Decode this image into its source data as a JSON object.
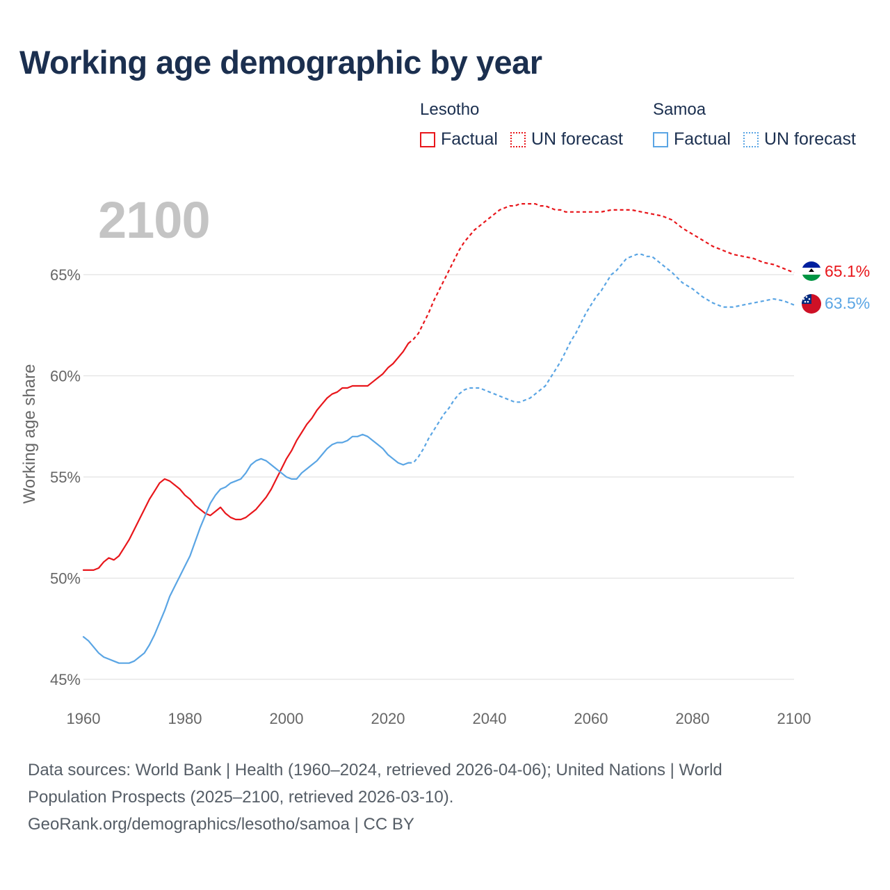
{
  "title": "Working age demographic by year",
  "legend": {
    "groups": [
      {
        "country": "Lesotho",
        "factual_label": "Factual",
        "forecast_label": "UN forecast",
        "color": "#e8161b"
      },
      {
        "country": "Samoa",
        "factual_label": "Factual",
        "forecast_label": "UN forecast",
        "color": "#5aa5e4"
      }
    ]
  },
  "year_label": "2100",
  "end_labels": {
    "lesotho": "65.1%",
    "samoa": "63.5%"
  },
  "flags": {
    "lesotho": "lesotho-flag-icon",
    "samoa": "samoa-flag-icon"
  },
  "sources": {
    "line1": "Data sources: World Bank | Health (1960–2024, retrieved 2026-04-06); United Nations | World",
    "line2": "Population Prospects (2025–2100, retrieved 2026-03-10).",
    "line3": "GeoRank.org/demographics/lesotho/samoa | CC BY"
  },
  "chart_data": {
    "type": "line",
    "title": "Working age demographic by year",
    "xlabel": "",
    "ylabel": "Working age share",
    "xlim": [
      1960,
      2100
    ],
    "ylim": [
      45,
      69
    ],
    "x_ticks": [
      "1960",
      "1980",
      "2000",
      "2020",
      "2040",
      "2060",
      "2080",
      "2100"
    ],
    "y_ticks": [
      "45%",
      "50%",
      "55%",
      "60%",
      "65%"
    ],
    "y_tick_values": [
      45,
      50,
      55,
      60,
      65
    ],
    "x_tick_values": [
      1960,
      1980,
      2000,
      2020,
      2040,
      2060,
      2080,
      2100
    ],
    "grid": true,
    "factual_end_year": 2024,
    "series": [
      {
        "name": "Lesotho",
        "color": "#e8161b",
        "points": [
          [
            1960,
            50.4
          ],
          [
            1962,
            50.4
          ],
          [
            1963,
            50.5
          ],
          [
            1964,
            50.8
          ],
          [
            1965,
            51.0
          ],
          [
            1966,
            50.9
          ],
          [
            1967,
            51.1
          ],
          [
            1968,
            51.5
          ],
          [
            1969,
            51.9
          ],
          [
            1970,
            52.4
          ],
          [
            1971,
            52.9
          ],
          [
            1972,
            53.4
          ],
          [
            1973,
            53.9
          ],
          [
            1974,
            54.3
          ],
          [
            1975,
            54.7
          ],
          [
            1976,
            54.9
          ],
          [
            1977,
            54.8
          ],
          [
            1978,
            54.6
          ],
          [
            1979,
            54.4
          ],
          [
            1980,
            54.1
          ],
          [
            1981,
            53.9
          ],
          [
            1982,
            53.6
          ],
          [
            1983,
            53.4
          ],
          [
            1984,
            53.2
          ],
          [
            1985,
            53.1
          ],
          [
            1986,
            53.3
          ],
          [
            1987,
            53.5
          ],
          [
            1988,
            53.2
          ],
          [
            1989,
            53.0
          ],
          [
            1990,
            52.9
          ],
          [
            1991,
            52.9
          ],
          [
            1992,
            53.0
          ],
          [
            1993,
            53.2
          ],
          [
            1994,
            53.4
          ],
          [
            1995,
            53.7
          ],
          [
            1996,
            54.0
          ],
          [
            1997,
            54.4
          ],
          [
            1998,
            54.9
          ],
          [
            1999,
            55.4
          ],
          [
            2000,
            55.9
          ],
          [
            2001,
            56.3
          ],
          [
            2002,
            56.8
          ],
          [
            2003,
            57.2
          ],
          [
            2004,
            57.6
          ],
          [
            2005,
            57.9
          ],
          [
            2006,
            58.3
          ],
          [
            2007,
            58.6
          ],
          [
            2008,
            58.9
          ],
          [
            2009,
            59.1
          ],
          [
            2010,
            59.2
          ],
          [
            2011,
            59.4
          ],
          [
            2012,
            59.4
          ],
          [
            2013,
            59.5
          ],
          [
            2014,
            59.5
          ],
          [
            2015,
            59.5
          ],
          [
            2016,
            59.5
          ],
          [
            2017,
            59.7
          ],
          [
            2018,
            59.9
          ],
          [
            2019,
            60.1
          ],
          [
            2020,
            60.4
          ],
          [
            2021,
            60.6
          ],
          [
            2022,
            60.9
          ],
          [
            2023,
            61.2
          ],
          [
            2024,
            61.6
          ],
          [
            2025,
            61.8
          ],
          [
            2026,
            62.1
          ],
          [
            2027,
            62.6
          ],
          [
            2028,
            63.1
          ],
          [
            2029,
            63.7
          ],
          [
            2030,
            64.2
          ],
          [
            2031,
            64.7
          ],
          [
            2032,
            65.2
          ],
          [
            2033,
            65.7
          ],
          [
            2034,
            66.2
          ],
          [
            2035,
            66.6
          ],
          [
            2036,
            66.9
          ],
          [
            2037,
            67.2
          ],
          [
            2038,
            67.4
          ],
          [
            2039,
            67.6
          ],
          [
            2040,
            67.8
          ],
          [
            2041,
            68.0
          ],
          [
            2042,
            68.2
          ],
          [
            2043,
            68.3
          ],
          [
            2044,
            68.4
          ],
          [
            2045,
            68.4
          ],
          [
            2046,
            68.5
          ],
          [
            2047,
            68.5
          ],
          [
            2048,
            68.5
          ],
          [
            2049,
            68.5
          ],
          [
            2050,
            68.4
          ],
          [
            2051,
            68.4
          ],
          [
            2052,
            68.3
          ],
          [
            2053,
            68.2
          ],
          [
            2054,
            68.2
          ],
          [
            2055,
            68.1
          ],
          [
            2056,
            68.1
          ],
          [
            2058,
            68.1
          ],
          [
            2060,
            68.1
          ],
          [
            2062,
            68.1
          ],
          [
            2064,
            68.2
          ],
          [
            2066,
            68.2
          ],
          [
            2068,
            68.2
          ],
          [
            2070,
            68.1
          ],
          [
            2072,
            68.0
          ],
          [
            2074,
            67.9
          ],
          [
            2076,
            67.7
          ],
          [
            2078,
            67.3
          ],
          [
            2080,
            67.0
          ],
          [
            2082,
            66.7
          ],
          [
            2084,
            66.4
          ],
          [
            2086,
            66.2
          ],
          [
            2088,
            66.0
          ],
          [
            2090,
            65.9
          ],
          [
            2092,
            65.8
          ],
          [
            2094,
            65.6
          ],
          [
            2096,
            65.5
          ],
          [
            2098,
            65.3
          ],
          [
            2100,
            65.1
          ]
        ]
      },
      {
        "name": "Samoa",
        "color": "#5aa5e4",
        "points": [
          [
            1960,
            47.1
          ],
          [
            1961,
            46.9
          ],
          [
            1962,
            46.6
          ],
          [
            1963,
            46.3
          ],
          [
            1964,
            46.1
          ],
          [
            1965,
            46.0
          ],
          [
            1966,
            45.9
          ],
          [
            1967,
            45.8
          ],
          [
            1968,
            45.8
          ],
          [
            1969,
            45.8
          ],
          [
            1970,
            45.9
          ],
          [
            1971,
            46.1
          ],
          [
            1972,
            46.3
          ],
          [
            1973,
            46.7
          ],
          [
            1974,
            47.2
          ],
          [
            1975,
            47.8
          ],
          [
            1976,
            48.4
          ],
          [
            1977,
            49.1
          ],
          [
            1978,
            49.6
          ],
          [
            1979,
            50.1
          ],
          [
            1980,
            50.6
          ],
          [
            1981,
            51.1
          ],
          [
            1982,
            51.8
          ],
          [
            1983,
            52.5
          ],
          [
            1984,
            53.1
          ],
          [
            1985,
            53.7
          ],
          [
            1986,
            54.1
          ],
          [
            1987,
            54.4
          ],
          [
            1988,
            54.5
          ],
          [
            1989,
            54.7
          ],
          [
            1990,
            54.8
          ],
          [
            1991,
            54.9
          ],
          [
            1992,
            55.2
          ],
          [
            1993,
            55.6
          ],
          [
            1994,
            55.8
          ],
          [
            1995,
            55.9
          ],
          [
            1996,
            55.8
          ],
          [
            1997,
            55.6
          ],
          [
            1998,
            55.4
          ],
          [
            1999,
            55.2
          ],
          [
            2000,
            55.0
          ],
          [
            2001,
            54.9
          ],
          [
            2002,
            54.9
          ],
          [
            2003,
            55.2
          ],
          [
            2004,
            55.4
          ],
          [
            2005,
            55.6
          ],
          [
            2006,
            55.8
          ],
          [
            2007,
            56.1
          ],
          [
            2008,
            56.4
          ],
          [
            2009,
            56.6
          ],
          [
            2010,
            56.7
          ],
          [
            2011,
            56.7
          ],
          [
            2012,
            56.8
          ],
          [
            2013,
            57.0
          ],
          [
            2014,
            57.0
          ],
          [
            2015,
            57.1
          ],
          [
            2016,
            57.0
          ],
          [
            2017,
            56.8
          ],
          [
            2018,
            56.6
          ],
          [
            2019,
            56.4
          ],
          [
            2020,
            56.1
          ],
          [
            2021,
            55.9
          ],
          [
            2022,
            55.7
          ],
          [
            2023,
            55.6
          ],
          [
            2024,
            55.7
          ],
          [
            2025,
            55.7
          ],
          [
            2026,
            56.0
          ],
          [
            2027,
            56.4
          ],
          [
            2028,
            56.9
          ],
          [
            2029,
            57.3
          ],
          [
            2030,
            57.7
          ],
          [
            2031,
            58.1
          ],
          [
            2032,
            58.4
          ],
          [
            2033,
            58.8
          ],
          [
            2034,
            59.1
          ],
          [
            2035,
            59.3
          ],
          [
            2036,
            59.4
          ],
          [
            2037,
            59.4
          ],
          [
            2038,
            59.4
          ],
          [
            2039,
            59.3
          ],
          [
            2040,
            59.2
          ],
          [
            2041,
            59.1
          ],
          [
            2042,
            59.0
          ],
          [
            2043,
            58.9
          ],
          [
            2044,
            58.8
          ],
          [
            2045,
            58.7
          ],
          [
            2046,
            58.7
          ],
          [
            2047,
            58.8
          ],
          [
            2048,
            58.9
          ],
          [
            2049,
            59.1
          ],
          [
            2050,
            59.3
          ],
          [
            2051,
            59.5
          ],
          [
            2052,
            59.9
          ],
          [
            2053,
            60.3
          ],
          [
            2054,
            60.7
          ],
          [
            2055,
            61.2
          ],
          [
            2056,
            61.7
          ],
          [
            2057,
            62.1
          ],
          [
            2058,
            62.6
          ],
          [
            2059,
            63.1
          ],
          [
            2060,
            63.5
          ],
          [
            2061,
            63.9
          ],
          [
            2062,
            64.2
          ],
          [
            2063,
            64.6
          ],
          [
            2064,
            65.0
          ],
          [
            2065,
            65.2
          ],
          [
            2066,
            65.5
          ],
          [
            2067,
            65.8
          ],
          [
            2068,
            65.9
          ],
          [
            2069,
            66.0
          ],
          [
            2070,
            66.0
          ],
          [
            2071,
            65.9
          ],
          [
            2072,
            65.9
          ],
          [
            2073,
            65.7
          ],
          [
            2074,
            65.5
          ],
          [
            2075,
            65.3
          ],
          [
            2076,
            65.1
          ],
          [
            2078,
            64.6
          ],
          [
            2080,
            64.3
          ],
          [
            2082,
            63.9
          ],
          [
            2084,
            63.6
          ],
          [
            2086,
            63.4
          ],
          [
            2088,
            63.4
          ],
          [
            2090,
            63.5
          ],
          [
            2092,
            63.6
          ],
          [
            2094,
            63.7
          ],
          [
            2096,
            63.8
          ],
          [
            2098,
            63.7
          ],
          [
            2100,
            63.5
          ]
        ]
      }
    ]
  }
}
